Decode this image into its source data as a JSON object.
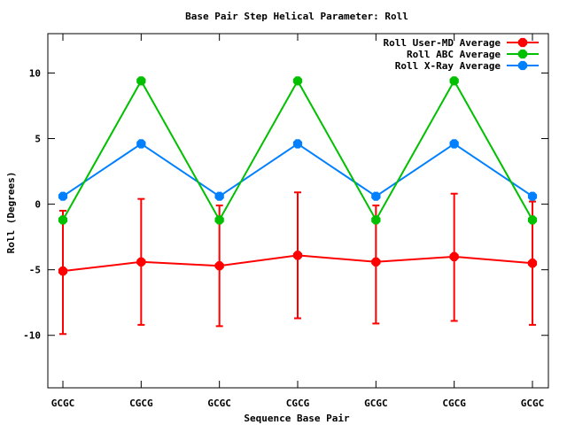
{
  "chart_data": {
    "type": "line",
    "title": "Base Pair Step Helical Parameter: Roll",
    "xlabel": "Sequence Base Pair",
    "ylabel": "Roll (Degrees)",
    "categories": [
      "GCGC",
      "CGCG",
      "GCGC",
      "CGCG",
      "GCGC",
      "CGCG",
      "GCGC"
    ],
    "ylim": [
      -14,
      13
    ],
    "yticks": [
      -10,
      -5,
      0,
      5,
      10
    ],
    "ytick_labels": [
      "-10",
      "-5",
      "0",
      "5",
      "10"
    ],
    "grid": false,
    "legend_position": "top-right",
    "series": [
      {
        "name": "Roll User-MD Average",
        "color": "#ff0000",
        "values": [
          -5.1,
          -4.4,
          -4.7,
          -3.9,
          -4.4,
          -4.0,
          -4.5
        ],
        "error_low": [
          -9.9,
          -9.2,
          -9.3,
          -8.7,
          -9.1,
          -8.9,
          -9.2
        ],
        "error_high": [
          -0.5,
          0.4,
          -0.1,
          0.9,
          -0.1,
          0.8,
          0.2
        ]
      },
      {
        "name": "Roll ABC Average",
        "color": "#00c000",
        "values": [
          -1.2,
          9.4,
          -1.2,
          9.4,
          -1.2,
          9.4,
          -1.2
        ]
      },
      {
        "name": "Roll X-Ray Average",
        "color": "#0080ff",
        "values": [
          0.6,
          4.6,
          0.6,
          4.6,
          0.6,
          4.6,
          0.6
        ]
      }
    ]
  }
}
